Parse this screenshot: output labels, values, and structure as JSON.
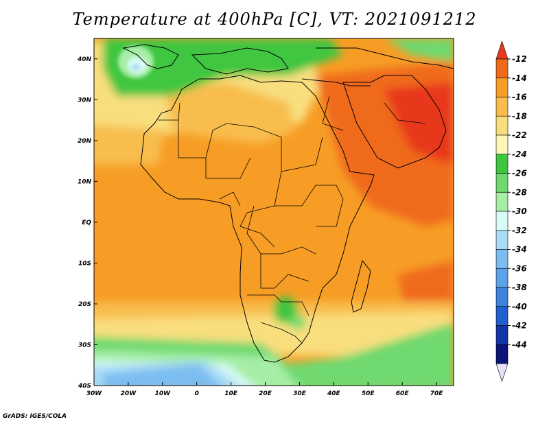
{
  "title": "Temperature at 400hPa [C], VT: 2021091212",
  "credit": "GrADS: IGES/COLA",
  "map": {
    "projection": "lat-lon",
    "lon_range": [
      -30,
      75
    ],
    "lat_range": [
      -40,
      45
    ],
    "lat_ticks": [
      {
        "value": 40,
        "label": "40N"
      },
      {
        "value": 30,
        "label": "30N"
      },
      {
        "value": 20,
        "label": "20N"
      },
      {
        "value": 10,
        "label": "10N"
      },
      {
        "value": 0,
        "label": "EQ"
      },
      {
        "value": -10,
        "label": "10S"
      },
      {
        "value": -20,
        "label": "20S"
      },
      {
        "value": -30,
        "label": "30S"
      },
      {
        "value": -40,
        "label": "40S"
      }
    ],
    "lon_ticks": [
      {
        "value": -30,
        "label": "30W"
      },
      {
        "value": -20,
        "label": "20W"
      },
      {
        "value": -10,
        "label": "10W"
      },
      {
        "value": 0,
        "label": "0"
      },
      {
        "value": 10,
        "label": "10E"
      },
      {
        "value": 20,
        "label": "20E"
      },
      {
        "value": 30,
        "label": "30E"
      },
      {
        "value": 40,
        "label": "40E"
      },
      {
        "value": 50,
        "label": "50E"
      },
      {
        "value": 60,
        "label": "60E"
      },
      {
        "value": 70,
        "label": "70E"
      }
    ]
  },
  "colorbar": {
    "labels": [
      "-12",
      "-14",
      "-16",
      "-18",
      "-22",
      "-24",
      "-26",
      "-28",
      "-30",
      "-32",
      "-34",
      "-36",
      "-38",
      "-40",
      "-42",
      "-44"
    ],
    "colors": [
      "#e8391e",
      "#f06a1c",
      "#f79d25",
      "#f8bd4d",
      "#f9de7e",
      "#fdf7b8",
      "#3fc63f",
      "#6fd96f",
      "#a6eea6",
      "#d9fbf6",
      "#a8dcf5",
      "#7cbdf0",
      "#5ca2ea",
      "#3c83e0",
      "#1f5fd0",
      "#1136a8",
      "#0b1478",
      "#e6e0f8"
    ]
  }
}
